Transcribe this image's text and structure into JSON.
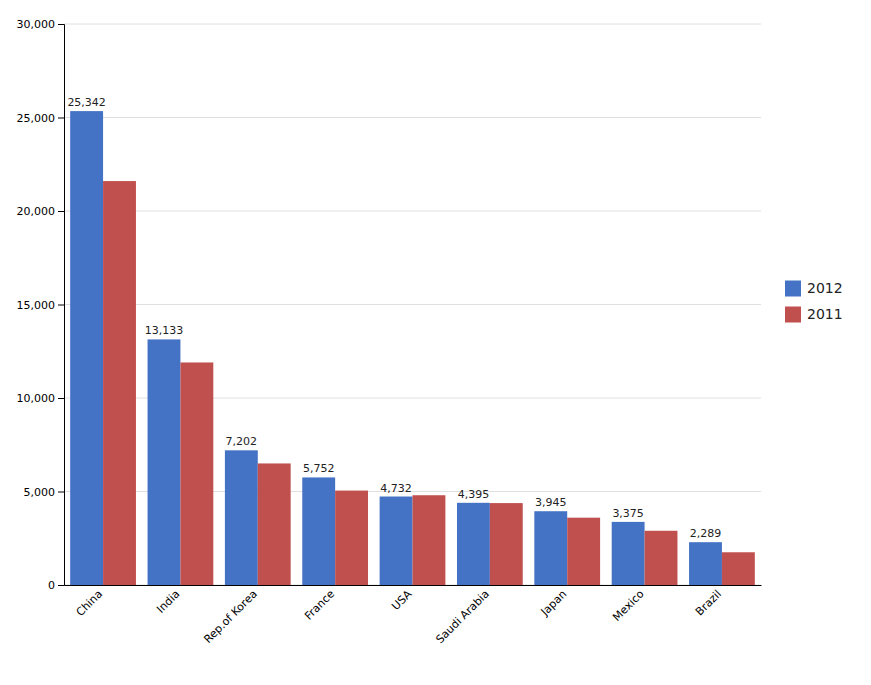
{
  "chart_data": {
    "type": "bar",
    "categories": [
      "China",
      "India",
      "Rep.of Korea",
      "France",
      "USA",
      "Saudi Arabia",
      "Japan",
      "Mexico",
      "Brazil"
    ],
    "series": [
      {
        "name": "2012",
        "color": "#4472C4",
        "values": [
          25342,
          13133,
          7202,
          5752,
          4732,
          4395,
          3945,
          3375,
          2289
        ],
        "value_labels": [
          "25,342",
          "13,133",
          "7,202",
          "5,752",
          "4,732",
          "4,395",
          "3,945",
          "3,375",
          "2,289"
        ]
      },
      {
        "name": "2011",
        "color": "#C0504D",
        "values": [
          21600,
          11900,
          6500,
          5050,
          4800,
          4380,
          3600,
          2900,
          1750
        ]
      }
    ],
    "ylim": [
      0,
      30000
    ],
    "yticks": [
      0,
      {
        "value": 5000,
        "label": "5,000"
      },
      {
        "value": 10000,
        "label": "10,000"
      },
      {
        "value": 15000,
        "label": "15,000"
      },
      {
        "value": 20000,
        "label": "20,000"
      },
      {
        "value": 25000,
        "label": "25,000"
      },
      {
        "value": 30000,
        "label": "30,000"
      }
    ],
    "grid": true,
    "legend": "right"
  }
}
